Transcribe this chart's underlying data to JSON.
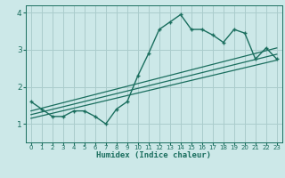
{
  "title": "",
  "xlabel": "Humidex (Indice chaleur)",
  "bg_color": "#cce8e8",
  "grid_color": "#aacccc",
  "line_color": "#1a6e5e",
  "xlim": [
    -0.5,
    23.5
  ],
  "ylim": [
    0.5,
    4.2
  ],
  "yticks": [
    1,
    2,
    3,
    4
  ],
  "xticks": [
    0,
    1,
    2,
    3,
    4,
    5,
    6,
    7,
    8,
    9,
    10,
    11,
    12,
    13,
    14,
    15,
    16,
    17,
    18,
    19,
    20,
    21,
    22,
    23
  ],
  "data_x": [
    0,
    1,
    2,
    3,
    4,
    5,
    6,
    7,
    8,
    9,
    10,
    11,
    12,
    13,
    14,
    15,
    16,
    17,
    18,
    19,
    20,
    21,
    22,
    23
  ],
  "data_y": [
    1.6,
    1.4,
    1.2,
    1.2,
    1.35,
    1.35,
    1.2,
    1.0,
    1.4,
    1.6,
    2.3,
    2.9,
    3.55,
    3.75,
    3.95,
    3.55,
    3.55,
    3.4,
    3.2,
    3.55,
    3.45,
    2.75,
    3.05,
    2.75
  ],
  "trend1_x": [
    0,
    23
  ],
  "trend1_y": [
    1.15,
    2.72
  ],
  "trend2_x": [
    0,
    23
  ],
  "trend2_y": [
    1.25,
    2.88
  ],
  "trend3_x": [
    0,
    23
  ],
  "trend3_y": [
    1.35,
    3.05
  ]
}
